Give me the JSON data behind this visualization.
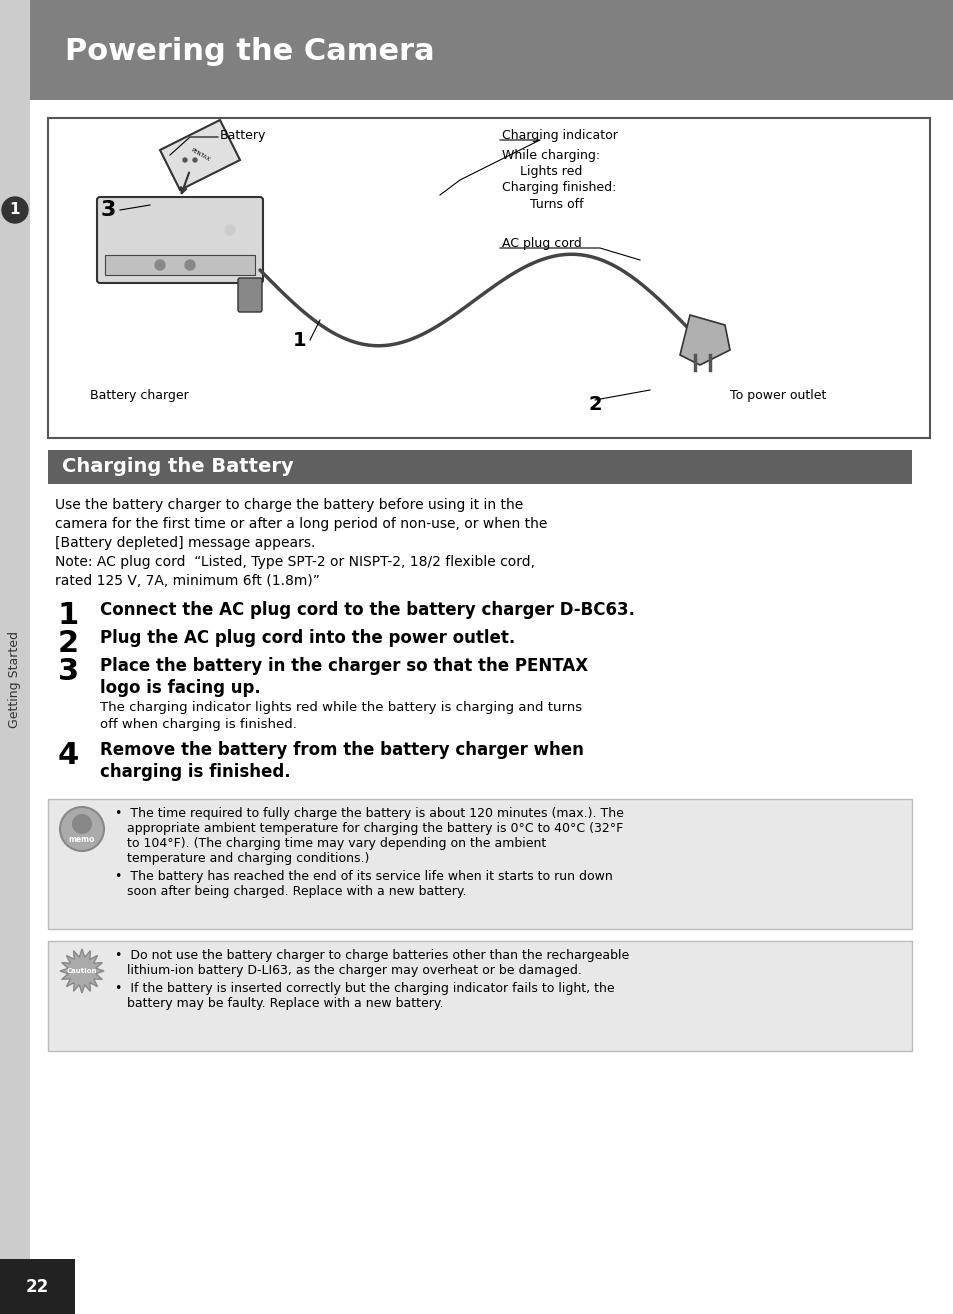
{
  "bg_color": "#e8e8e8",
  "page_bg": "#ffffff",
  "header_bg": "#808080",
  "header_text": "Powering the Camera",
  "header_text_color": "#ffffff",
  "section_bg": "#606060",
  "section_text": "Charging the Battery",
  "section_text_color": "#ffffff",
  "sidebar_bg": "#cccccc",
  "sidebar_text": "Getting Started",
  "sidebar_number": "1",
  "page_number": "22",
  "page_num_bg": "#222222",
  "intro_lines": [
    "Use the battery charger to charge the battery before using it in the",
    "camera for the first time or after a long period of non-use, or when the",
    "[Battery depleted] message appears.",
    "Note: AC plug cord  “Listed, Type SPT-2 or NISPT-2, 18/2 flexible cord,",
    "rated 125 V, 7A, minimum 6ft (1.8m)”"
  ],
  "steps": [
    {
      "num": "1",
      "bold": [
        "Connect the AC plug cord to the battery charger D-BC63."
      ],
      "normal": []
    },
    {
      "num": "2",
      "bold": [
        "Plug the AC plug cord into the power outlet."
      ],
      "normal": []
    },
    {
      "num": "3",
      "bold": [
        "Place the battery in the charger so that the PENTAX",
        "logo is facing up."
      ],
      "normal": [
        "The charging indicator lights red while the battery is charging and turns",
        "off when charging is finished."
      ]
    },
    {
      "num": "4",
      "bold": [
        "Remove the battery from the battery charger when",
        "charging is finished."
      ],
      "normal": []
    }
  ],
  "memo_bullets": [
    [
      "The time required to fully charge the battery is about 120 minutes (max.). The",
      "appropriate ambient temperature for charging the battery is 0°C to 40°C (32°F",
      "to 104°F). (The charging time may vary depending on the ambient",
      "temperature and charging conditions.)"
    ],
    [
      "The battery has reached the end of its service life when it starts to run down",
      "soon after being charged. Replace with a new battery."
    ]
  ],
  "caution_bullets": [
    [
      "Do not use the battery charger to charge batteries other than the rechargeable",
      "lithium-ion battery D-LI63, as the charger may overheat or be damaged."
    ],
    [
      "If the battery is inserted correctly but the charging indicator fails to light, the",
      "battery may be faulty. Replace with a new battery."
    ]
  ],
  "diag": {
    "battery_label": "Battery",
    "charging_indicator": "Charging indicator",
    "while_charging": "While charging:",
    "lights_red": "Lights red",
    "charging_finished": "Charging finished:",
    "turns_off": "Turns off",
    "ac_plug_cord": "AC plug cord",
    "battery_charger": "Battery charger",
    "to_power_outlet": "To power outlet",
    "num1": "1",
    "num2": "2",
    "num3": "3"
  }
}
